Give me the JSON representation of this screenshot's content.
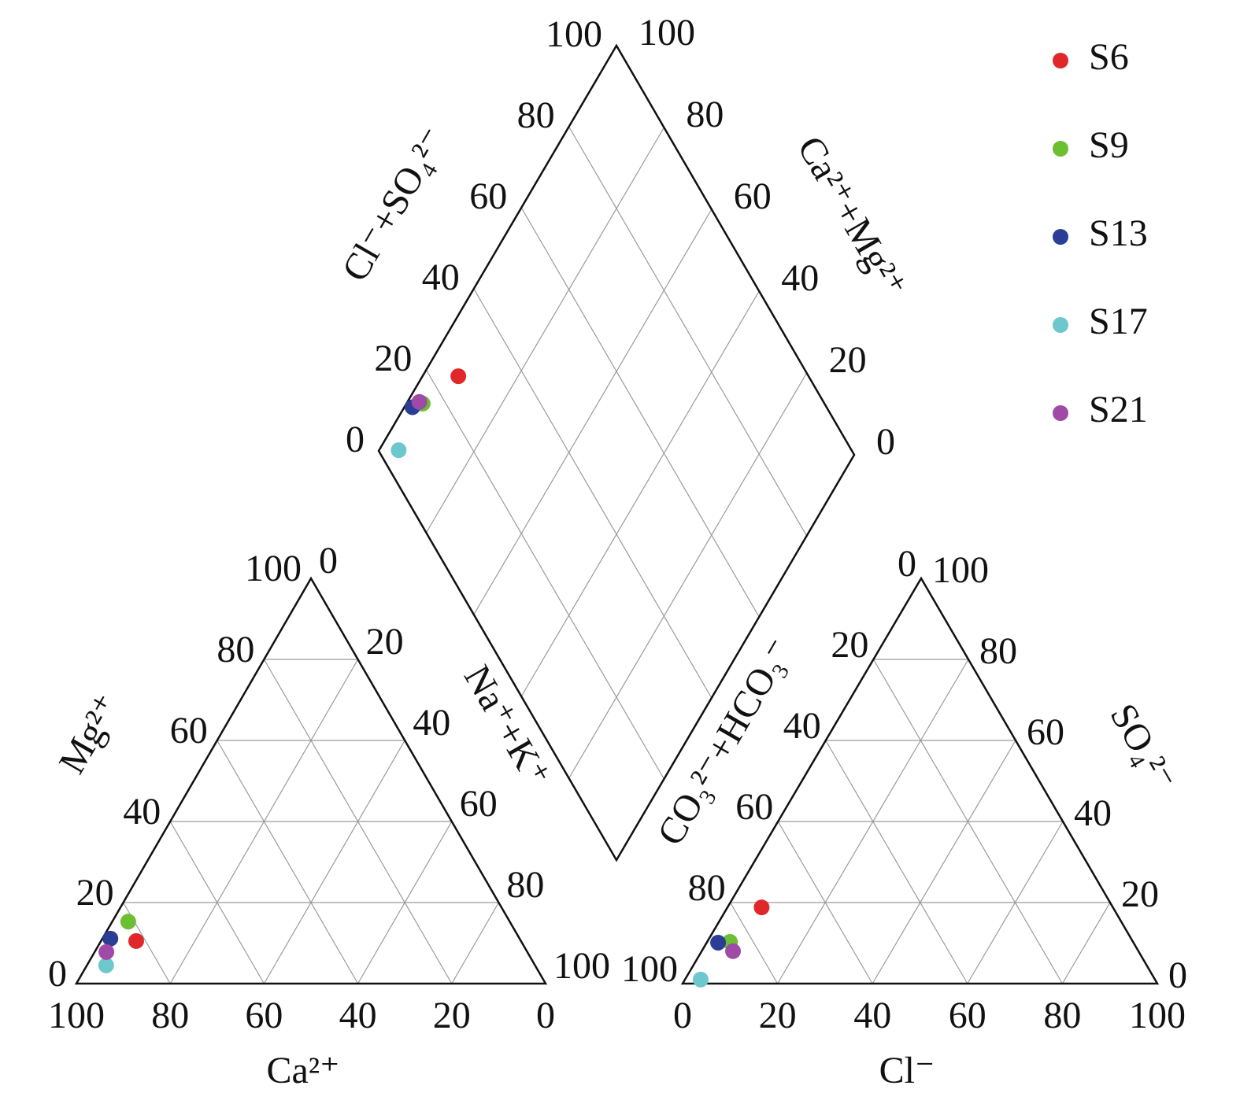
{
  "chart_data": {
    "type": "piper",
    "ticks": [
      0,
      20,
      40,
      60,
      80,
      100
    ],
    "axis_titles": {
      "ca": "Ca²⁺",
      "mg": "Mg²⁺",
      "na_k": "Na⁺+K⁺",
      "cl": "Cl⁻",
      "so4": "SO₄²⁻",
      "co3_hco3": "CO₃²⁻+HCO₃⁻",
      "cl_so4": "Cl⁻+SO₄²⁻",
      "ca_mg": "Ca²⁺+Mg²⁺"
    },
    "grid": true,
    "legend": "top-right",
    "series": [
      {
        "name": "S6",
        "color": "#e0282b",
        "cations": [
          82.0,
          10.5,
          7.5
        ],
        "anions": [
          74.0,
          7.2,
          18.8
        ]
      },
      {
        "name": "S9",
        "color": "#6bbf30",
        "cations": [
          81.3,
          15.3,
          3.4
        ],
        "anions": [
          84.9,
          4.8,
          10.3
        ]
      },
      {
        "name": "S13",
        "color": "#2b3e95",
        "cations": [
          87.2,
          11.1,
          1.7
        ],
        "anions": [
          87.5,
          2.4,
          10.1
        ]
      },
      {
        "name": "S17",
        "color": "#6cc8cc",
        "cations": [
          91.4,
          4.5,
          4.1
        ],
        "anions": [
          95.7,
          3.3,
          1.0
        ]
      },
      {
        "name": "S21",
        "color": "#a04aa8",
        "cations": [
          89.7,
          7.8,
          2.5
        ],
        "anions": [
          85.4,
          6.6,
          8.0
        ]
      }
    ]
  }
}
